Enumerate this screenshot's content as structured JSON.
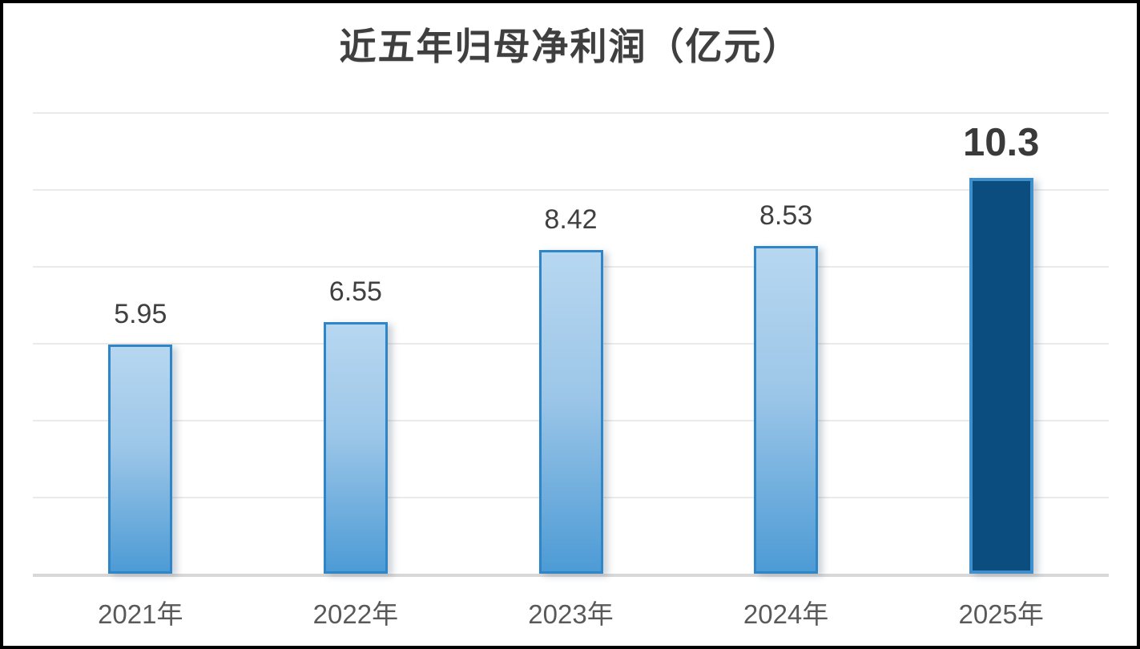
{
  "chart_data": {
    "type": "bar",
    "title": "近五年归母净利润（亿元）",
    "categories": [
      "2021年",
      "2022年",
      "2023年",
      "2024年",
      "2025年"
    ],
    "values": [
      5.95,
      6.55,
      8.42,
      8.53,
      10.3
    ],
    "value_labels": [
      "5.95",
      "6.55",
      "8.42",
      "8.53",
      "10.3"
    ],
    "highlight_index": 4,
    "xlabel": "",
    "ylabel": "",
    "ylim": [
      0,
      12
    ],
    "grid_step": 2,
    "grid": "horizontal",
    "y_axis_tick_labels": "none",
    "legend": "none",
    "colors": {
      "bar_fill_top": "#B7D7F0",
      "bar_fill_bottom": "#4D9BD5",
      "bar_border": "#2E86C8",
      "highlight_bar_fill": "#0B4D7F",
      "highlight_bar_border": "#3E8FCC",
      "gridline": "#EAEAEA",
      "axis_line": "#D8D8D8",
      "title_color": "#3F3F3F",
      "value_label_color": "#404040",
      "highlight_value_label_color": "#3A3A3A",
      "x_tick_color": "#595959",
      "background": "#FFFFFF"
    }
  }
}
